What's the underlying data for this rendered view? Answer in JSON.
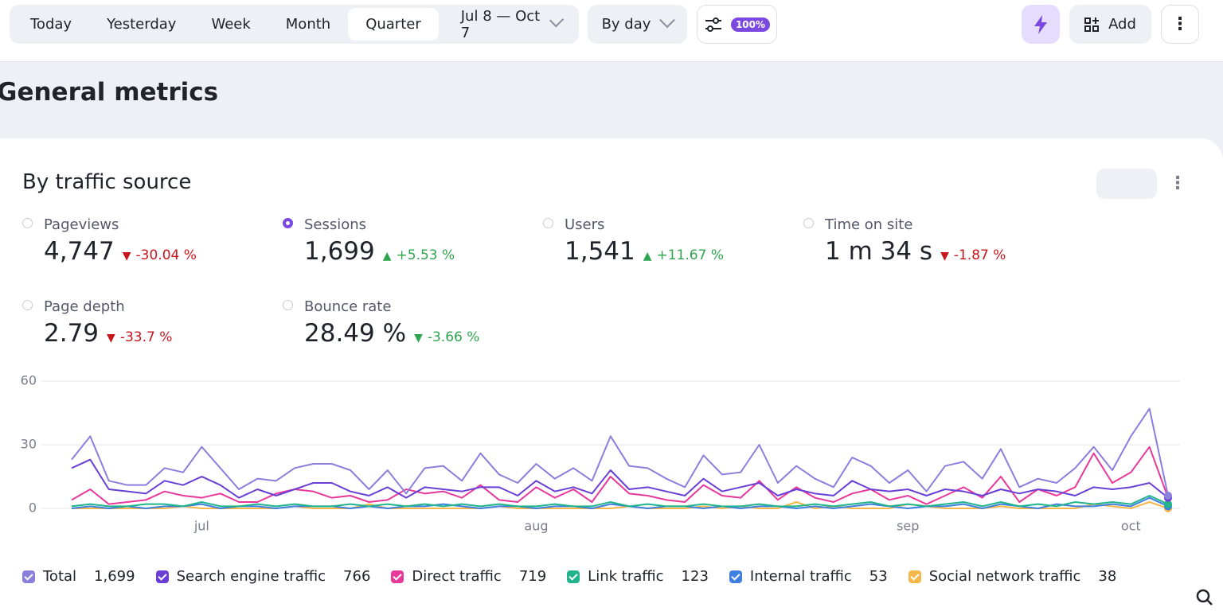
{
  "toolbar": {
    "periods": [
      "Today",
      "Yesterday",
      "Week",
      "Month",
      "Quarter"
    ],
    "active_period": 4,
    "date_range": "Jul 8 — Oct 7",
    "grouping": "By day",
    "sampling": "100%",
    "add": "Add"
  },
  "page_title": "General metrics",
  "card": {
    "title": "By traffic source",
    "metrics": [
      {
        "name": "Pageviews",
        "value": "4,747",
        "change": "-30.04 %",
        "direction": "down",
        "trend": "bad",
        "selected": false
      },
      {
        "name": "Sessions",
        "value": "1,699",
        "change": "+5.53 %",
        "direction": "up",
        "trend": "good",
        "selected": true
      },
      {
        "name": "Users",
        "value": "1,541",
        "change": "+11.67 %",
        "direction": "up",
        "trend": "good",
        "selected": false
      },
      {
        "name": "Time on site",
        "value": "1 m 34 s",
        "change": "-1.87 %",
        "direction": "down",
        "trend": "bad",
        "selected": false
      },
      {
        "name": "Page depth",
        "value": "2.79",
        "change": "-33.7 %",
        "direction": "down",
        "trend": "bad",
        "selected": false
      },
      {
        "name": "Bounce rate",
        "value": "28.49 %",
        "change": "-3.66 %",
        "direction": "down",
        "trend": "good",
        "selected": false
      }
    ]
  },
  "chart_data": {
    "type": "line",
    "categories": [
      null,
      null,
      null,
      null,
      null,
      null,
      null,
      "jul",
      null,
      null,
      null,
      null,
      null,
      null,
      null,
      null,
      null,
      null,
      null,
      null,
      null,
      null,
      null,
      null,
      null,
      "aug",
      null,
      null,
      null,
      null,
      null,
      null,
      null,
      null,
      null,
      null,
      null,
      null,
      null,
      null,
      null,
      null,
      null,
      null,
      null,
      "sep",
      null,
      null,
      null,
      null,
      null,
      null,
      null,
      null,
      null,
      null,
      null,
      "oct",
      null,
      null
    ],
    "ylim": [
      0,
      60
    ],
    "yticks": [
      0,
      30,
      60
    ],
    "grid": true,
    "series": [
      {
        "name": "Total",
        "total": "1,699",
        "color": "#8a7fdc",
        "values": [
          23,
          34,
          13,
          11,
          11,
          19,
          17,
          29,
          19,
          9,
          14,
          13,
          19,
          21,
          21,
          18,
          9,
          18,
          7,
          19,
          20,
          13,
          26,
          16,
          12,
          21,
          14,
          19,
          13,
          34,
          20,
          19,
          14,
          10,
          25,
          16,
          17,
          30,
          12,
          20,
          14,
          10,
          24,
          20,
          12,
          18,
          8,
          20,
          22,
          14,
          28,
          10,
          14,
          12,
          19,
          29,
          18,
          34,
          47,
          6
        ]
      },
      {
        "name": "Search engine traffic",
        "total": 766,
        "color": "#6a3fd6",
        "values": [
          19,
          23,
          9,
          8,
          7,
          13,
          11,
          15,
          11,
          5,
          9,
          6,
          9,
          12,
          12,
          8,
          6,
          10,
          5,
          10,
          9,
          8,
          10,
          10,
          6,
          13,
          8,
          10,
          7,
          18,
          9,
          10,
          8,
          6,
          14,
          8,
          10,
          12,
          6,
          9,
          7,
          6,
          13,
          9,
          8,
          9,
          6,
          9,
          8,
          6,
          9,
          7,
          9,
          8,
          6,
          10,
          9,
          10,
          12,
          5
        ]
      },
      {
        "name": "Direct traffic",
        "total": 719,
        "color": "#e8399b",
        "values": [
          4,
          9,
          2,
          3,
          4,
          8,
          6,
          5,
          7,
          3,
          3,
          7,
          9,
          8,
          5,
          6,
          3,
          4,
          9,
          7,
          8,
          5,
          11,
          4,
          3,
          10,
          5,
          9,
          3,
          15,
          7,
          6,
          4,
          3,
          11,
          6,
          5,
          13,
          4,
          10,
          5,
          3,
          7,
          9,
          4,
          6,
          2,
          6,
          10,
          5,
          15,
          3,
          9,
          6,
          10,
          26,
          12,
          17,
          29,
          5
        ]
      },
      {
        "name": "Link traffic",
        "total": 123,
        "color": "#1fb48c",
        "values": [
          1,
          2,
          1,
          1,
          2,
          2,
          1,
          3,
          1,
          1,
          2,
          1,
          2,
          1,
          1,
          2,
          1,
          2,
          1,
          2,
          1,
          2,
          1,
          2,
          1,
          1,
          2,
          1,
          1,
          3,
          1,
          2,
          1,
          1,
          2,
          1,
          1,
          2,
          1,
          1,
          2,
          1,
          2,
          3,
          1,
          2,
          1,
          2,
          3,
          1,
          3,
          1,
          2,
          1,
          3,
          2,
          3,
          2,
          6,
          2
        ]
      },
      {
        "name": "Internal traffic",
        "total": 53,
        "color": "#3f7fe0",
        "values": [
          0,
          1,
          0,
          1,
          0,
          1,
          1,
          2,
          0,
          1,
          1,
          0,
          1,
          1,
          1,
          0,
          1,
          0,
          1,
          1,
          2,
          1,
          0,
          1,
          1,
          0,
          1,
          1,
          0,
          2,
          1,
          0,
          1,
          1,
          0,
          1,
          0,
          1,
          1,
          0,
          1,
          0,
          1,
          2,
          1,
          0,
          1,
          1,
          2,
          0,
          2,
          1,
          0,
          2,
          1,
          1,
          2,
          1,
          5,
          1
        ]
      },
      {
        "name": "Social network traffic",
        "total": 38,
        "color": "#f5b74a",
        "values": [
          0,
          0,
          0,
          0,
          0,
          0,
          1,
          0,
          0,
          0,
          0,
          0,
          1,
          0,
          0,
          0,
          2,
          0,
          0,
          0,
          0,
          0,
          0,
          1,
          0,
          0,
          0,
          0,
          0,
          0,
          1,
          0,
          0,
          0,
          1,
          0,
          1,
          0,
          0,
          3,
          0,
          1,
          0,
          0,
          0,
          2,
          1,
          0,
          0,
          0,
          1,
          0,
          0,
          0,
          0,
          2,
          1,
          0,
          3,
          0
        ]
      }
    ]
  }
}
